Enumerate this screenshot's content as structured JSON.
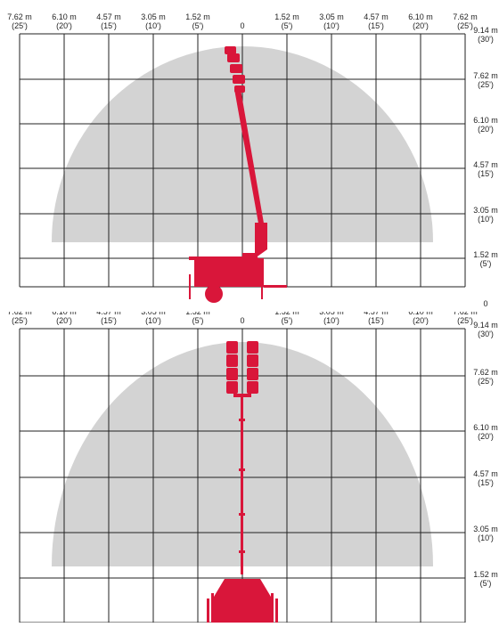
{
  "colors": {
    "machine": "#d9163a",
    "envelope": "#d3d3d3",
    "grid": "#222222",
    "text": "#222222"
  },
  "horizontal_labels": [
    {
      "m": "7.62 m",
      "ft": "(25')"
    },
    {
      "m": "6.10 m",
      "ft": "(20')"
    },
    {
      "m": "4.57 m",
      "ft": "(15')"
    },
    {
      "m": "3.05 m",
      "ft": "(10')"
    },
    {
      "m": "1.52 m",
      "ft": "(5')"
    },
    {
      "m": "0",
      "ft": ""
    },
    {
      "m": "1.52 m",
      "ft": "(5')"
    },
    {
      "m": "3.05 m",
      "ft": "(10')"
    },
    {
      "m": "4.57 m",
      "ft": "(15')"
    },
    {
      "m": "6.10 m",
      "ft": "(20')"
    },
    {
      "m": "7.62 m",
      "ft": "(25')"
    }
  ],
  "vertical_labels": [
    {
      "m": "9.14 m",
      "ft": "(30')"
    },
    {
      "m": "7.62 m",
      "ft": "(25')"
    },
    {
      "m": "6.10 m",
      "ft": "(20')"
    },
    {
      "m": "4.57 m",
      "ft": "(15')"
    },
    {
      "m": "3.05 m",
      "ft": "(10')"
    },
    {
      "m": "1.52 m",
      "ft": "(5')"
    },
    {
      "m": "0",
      "ft": ""
    }
  ],
  "panels": [
    {
      "view": "side"
    },
    {
      "view": "rear"
    }
  ]
}
